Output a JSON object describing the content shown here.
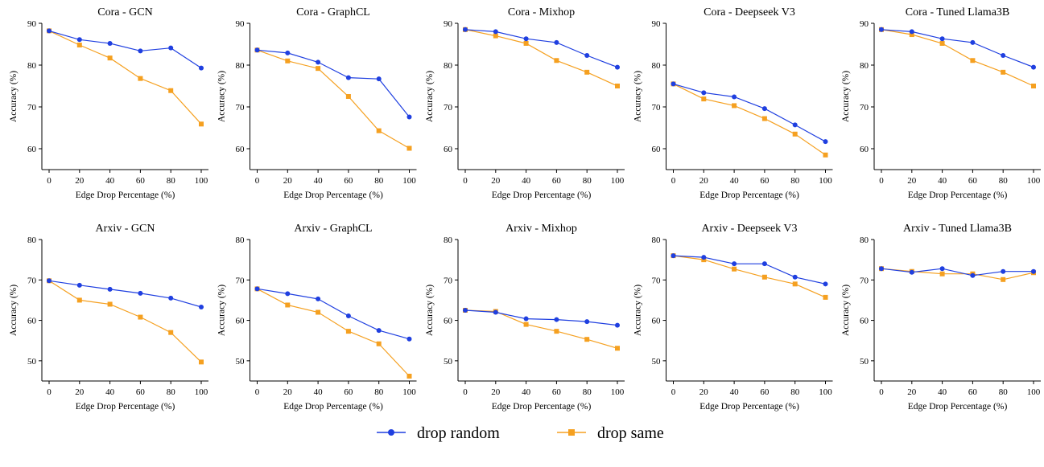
{
  "legend": {
    "placement": "bottom-center",
    "entries": [
      {
        "name": "drop random",
        "color": "#1f3fe0",
        "marker": "circle"
      },
      {
        "name": "drop same",
        "color": "#f5a020",
        "marker": "square"
      }
    ]
  },
  "chart_data": [
    {
      "type": "line",
      "title": "Cora - GCN",
      "xlabel": "Edge Drop Percentage (%)",
      "ylabel": "Accuracy (%)",
      "x": [
        0,
        20,
        40,
        60,
        80,
        100
      ],
      "xticks": [
        "0",
        "20",
        "40",
        "60",
        "80",
        "100"
      ],
      "ylim": [
        55,
        90
      ],
      "yticks": [
        60,
        70,
        80,
        90
      ],
      "series": [
        {
          "name": "drop random",
          "values": [
            88.2,
            86.1,
            85.2,
            83.4,
            84.1,
            79.3
          ]
        },
        {
          "name": "drop same",
          "values": [
            88.2,
            84.8,
            81.7,
            76.8,
            73.9,
            65.9
          ]
        }
      ]
    },
    {
      "type": "line",
      "title": "Cora - GraphCL",
      "xlabel": "Edge Drop Percentage (%)",
      "ylabel": "Accuracy (%)",
      "x": [
        0,
        20,
        40,
        60,
        80,
        100
      ],
      "xticks": [
        "0",
        "20",
        "40",
        "60",
        "80",
        "100"
      ],
      "ylim": [
        55,
        90
      ],
      "yticks": [
        60,
        70,
        80,
        90
      ],
      "series": [
        {
          "name": "drop random",
          "values": [
            83.6,
            82.9,
            80.7,
            77.0,
            76.7,
            67.6
          ]
        },
        {
          "name": "drop same",
          "values": [
            83.6,
            81.0,
            79.2,
            72.5,
            64.3,
            60.1
          ]
        }
      ]
    },
    {
      "type": "line",
      "title": "Cora - Mixhop",
      "xlabel": "Edge Drop Percentage (%)",
      "ylabel": "Accuracy (%)",
      "x": [
        0,
        20,
        40,
        60,
        80,
        100
      ],
      "xticks": [
        "0",
        "20",
        "40",
        "60",
        "80",
        "100"
      ],
      "ylim": [
        55,
        90
      ],
      "yticks": [
        60,
        70,
        80,
        90
      ],
      "series": [
        {
          "name": "drop random",
          "values": [
            88.5,
            88.0,
            86.3,
            85.4,
            82.3,
            79.5
          ]
        },
        {
          "name": "drop same",
          "values": [
            88.5,
            87.0,
            85.2,
            81.1,
            78.3,
            75.0
          ]
        }
      ]
    },
    {
      "type": "line",
      "title": "Cora - Deepseek V3",
      "xlabel": "Edge Drop Percentage (%)",
      "ylabel": "Accuracy (%)",
      "x": [
        0,
        20,
        40,
        60,
        80,
        100
      ],
      "xticks": [
        "0",
        "20",
        "40",
        "60",
        "80",
        "100"
      ],
      "ylim": [
        55,
        90
      ],
      "yticks": [
        60,
        70,
        80,
        90
      ],
      "series": [
        {
          "name": "drop random",
          "values": [
            75.5,
            73.4,
            72.4,
            69.6,
            65.7,
            61.7
          ]
        },
        {
          "name": "drop same",
          "values": [
            75.5,
            71.9,
            70.3,
            67.2,
            63.5,
            58.5
          ]
        }
      ]
    },
    {
      "type": "line",
      "title": "Cora - Tuned Llama3B",
      "xlabel": "Edge Drop Percentage (%)",
      "ylabel": "Accuracy (%)",
      "x": [
        0,
        20,
        40,
        60,
        80,
        100
      ],
      "xticks": [
        "0",
        "20",
        "40",
        "60",
        "80",
        "100"
      ],
      "ylim": [
        55,
        90
      ],
      "yticks": [
        60,
        70,
        80,
        90
      ],
      "series": [
        {
          "name": "drop random",
          "values": [
            88.5,
            88.0,
            86.3,
            85.4,
            82.3,
            79.5
          ]
        },
        {
          "name": "drop same",
          "values": [
            88.5,
            87.3,
            85.2,
            81.1,
            78.3,
            75.0
          ]
        }
      ]
    },
    {
      "type": "line",
      "title": "Arxiv - GCN",
      "xlabel": "Edge Drop Percentage (%)",
      "ylabel": "Accuracy (%)",
      "x": [
        0,
        20,
        40,
        60,
        80,
        100
      ],
      "xticks": [
        "0",
        "20",
        "40",
        "60",
        "80",
        "100"
      ],
      "ylim": [
        45,
        80
      ],
      "yticks": [
        50,
        60,
        70,
        80
      ],
      "series": [
        {
          "name": "drop random",
          "values": [
            69.8,
            68.7,
            67.7,
            66.7,
            65.5,
            63.3
          ]
        },
        {
          "name": "drop same",
          "values": [
            69.8,
            65.0,
            64.0,
            60.8,
            57.0,
            49.7
          ]
        }
      ]
    },
    {
      "type": "line",
      "title": "Arxiv - GraphCL",
      "xlabel": "Edge Drop Percentage (%)",
      "ylabel": "Accuracy (%)",
      "x": [
        0,
        20,
        40,
        60,
        80,
        100
      ],
      "xticks": [
        "0",
        "20",
        "40",
        "60",
        "80",
        "100"
      ],
      "ylim": [
        45,
        80
      ],
      "yticks": [
        50,
        60,
        70,
        80
      ],
      "series": [
        {
          "name": "drop random",
          "values": [
            67.8,
            66.6,
            65.3,
            61.1,
            57.5,
            55.4
          ]
        },
        {
          "name": "drop same",
          "values": [
            67.8,
            63.8,
            62.0,
            57.3,
            54.2,
            46.2
          ]
        }
      ]
    },
    {
      "type": "line",
      "title": "Arxiv - Mixhop",
      "xlabel": "Edge Drop Percentage (%)",
      "ylabel": "Accuracy (%)",
      "x": [
        0,
        20,
        40,
        60,
        80,
        100
      ],
      "xticks": [
        "0",
        "20",
        "40",
        "60",
        "80",
        "100"
      ],
      "ylim": [
        45,
        80
      ],
      "yticks": [
        50,
        60,
        70,
        80
      ],
      "series": [
        {
          "name": "drop random",
          "values": [
            62.5,
            62.0,
            60.4,
            60.2,
            59.7,
            58.8
          ]
        },
        {
          "name": "drop same",
          "values": [
            62.5,
            62.2,
            59.0,
            57.3,
            55.3,
            53.1
          ]
        }
      ]
    },
    {
      "type": "line",
      "title": "Arxiv - Deepseek V3",
      "xlabel": "Edge Drop Percentage (%)",
      "ylabel": "Accuracy (%)",
      "x": [
        0,
        20,
        40,
        60,
        80,
        100
      ],
      "xticks": [
        "0",
        "20",
        "40",
        "60",
        "80",
        "100"
      ],
      "ylim": [
        45,
        80
      ],
      "yticks": [
        50,
        60,
        70,
        80
      ],
      "series": [
        {
          "name": "drop random",
          "values": [
            76.0,
            75.6,
            74.0,
            74.0,
            70.7,
            69.0
          ]
        },
        {
          "name": "drop same",
          "values": [
            76.0,
            75.0,
            72.7,
            70.7,
            69.0,
            65.7
          ]
        }
      ]
    },
    {
      "type": "line",
      "title": "Arxiv - Tuned Llama3B",
      "xlabel": "Edge Drop Percentage (%)",
      "ylabel": "Accuracy (%)",
      "x": [
        0,
        20,
        40,
        60,
        80,
        100
      ],
      "xticks": [
        "0",
        "20",
        "40",
        "60",
        "80",
        "100"
      ],
      "ylim": [
        45,
        80
      ],
      "yticks": [
        50,
        60,
        70,
        80
      ],
      "series": [
        {
          "name": "drop random",
          "values": [
            72.8,
            71.9,
            72.8,
            71.1,
            72.1,
            72.1
          ]
        },
        {
          "name": "drop same",
          "values": [
            72.8,
            72.1,
            71.5,
            71.5,
            70.1,
            71.8
          ]
        }
      ]
    }
  ]
}
